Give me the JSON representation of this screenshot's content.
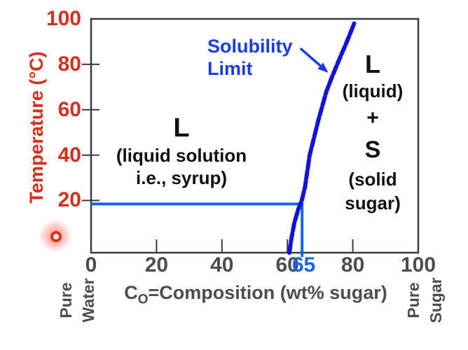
{
  "slide": {
    "y_axis_title": "Temperature (°C)",
    "x_axis_title_main": "C",
    "x_axis_title_sub": "O",
    "x_axis_title_rest": "=Composition (wt% sugar)",
    "corner_left_line1": "Pure",
    "corner_left_line2": "Water",
    "corner_right_line1": "Pure",
    "corner_right_line2": "Sugar",
    "annotation_line1": "Solubility",
    "annotation_line2": "Limit",
    "region_left_line1": "L",
    "region_left_line2": "(liquid solution",
    "region_left_line3": "i.e., syrup)",
    "region_right_line1": "L",
    "region_right_line2": "(liquid)",
    "region_right_line3": "+",
    "region_right_line4": "S",
    "region_right_line5": "(solid",
    "region_right_line6": "sugar)"
  },
  "colors": {
    "red": "#d4301f",
    "gray_text": "#4d4d4d",
    "axis": "#3c3c3c",
    "curve_blue": "#1212dd",
    "tie_blue": "#1565ec",
    "label_blue": "#1c3be4",
    "black_text": "#111111"
  },
  "chart_data": {
    "type": "line",
    "title": "",
    "xlabel": "Co=Composition (wt% sugar)",
    "ylabel": "Temperature (°C)",
    "xlim": [
      0,
      100
    ],
    "ylim": [
      -3,
      100
    ],
    "x_ticks": [
      0,
      20,
      40,
      60,
      80,
      100
    ],
    "y_ticks": [
      100,
      80,
      60,
      40,
      20
    ],
    "highlight_x_tick": 65,
    "grid": false,
    "legend": "none",
    "series": [
      {
        "name": "Solubility Limit",
        "points": [
          [
            60.6,
            -3
          ],
          [
            61.2,
            3
          ],
          [
            62.1,
            10
          ],
          [
            63.3,
            16
          ],
          [
            64.4,
            20
          ],
          [
            65.4,
            26
          ],
          [
            66.8,
            40
          ],
          [
            68.2,
            48
          ],
          [
            69.4,
            55
          ],
          [
            71.9,
            68
          ],
          [
            73.8,
            75
          ],
          [
            76.1,
            83
          ],
          [
            78.2,
            90
          ],
          [
            80.4,
            98
          ]
        ]
      }
    ],
    "tie_line": {
      "temperature": 20,
      "composition": 64.5
    },
    "annotation_arrow": {
      "from": [
        64.0,
        87.0
      ],
      "to": [
        72.5,
        76.3
      ]
    }
  }
}
